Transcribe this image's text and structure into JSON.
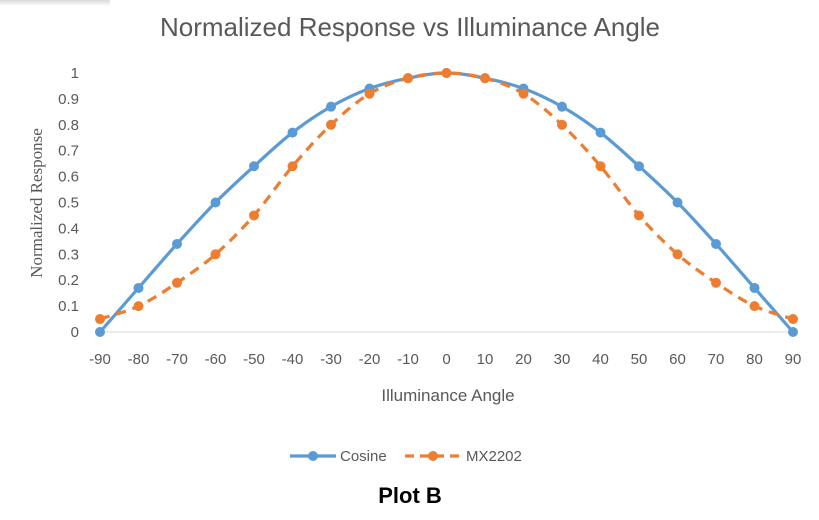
{
  "caption": "Plot B",
  "chart_data": {
    "type": "line",
    "title": "Normalized Response vs Illuminance Angle",
    "xlabel": "Illuminance Angle",
    "ylabel": "Normalized Response",
    "x": [
      -90,
      -80,
      -70,
      -60,
      -50,
      -40,
      -30,
      -20,
      -10,
      0,
      10,
      20,
      30,
      40,
      50,
      60,
      70,
      80,
      90
    ],
    "xticks": [
      "-90",
      "-80",
      "-70",
      "-60",
      "-50",
      "-40",
      "-30",
      "-20",
      "-10",
      "0",
      "10",
      "20",
      "30",
      "40",
      "50",
      "60",
      "70",
      "80",
      "90"
    ],
    "yticks": [
      "0",
      "0.1",
      "0.2",
      "0.3",
      "0.4",
      "0.5",
      "0.6",
      "0.7",
      "0.8",
      "0.9",
      "1"
    ],
    "xlim": [
      -90,
      90
    ],
    "ylim": [
      0,
      1
    ],
    "grid": false,
    "legend_position": "bottom",
    "series": [
      {
        "name": "Cosine",
        "color": "#5b9bd5",
        "style": "solid",
        "values": [
          0,
          0.17,
          0.34,
          0.5,
          0.64,
          0.77,
          0.87,
          0.94,
          0.98,
          1,
          0.98,
          0.94,
          0.87,
          0.77,
          0.64,
          0.5,
          0.34,
          0.17,
          0
        ]
      },
      {
        "name": "MX2202",
        "color": "#ed7d31",
        "style": "dashed",
        "values": [
          0.05,
          0.1,
          0.19,
          0.3,
          0.45,
          0.64,
          0.8,
          0.92,
          0.98,
          1,
          0.98,
          0.92,
          0.8,
          0.64,
          0.45,
          0.3,
          0.19,
          0.1,
          0.05
        ]
      }
    ]
  }
}
